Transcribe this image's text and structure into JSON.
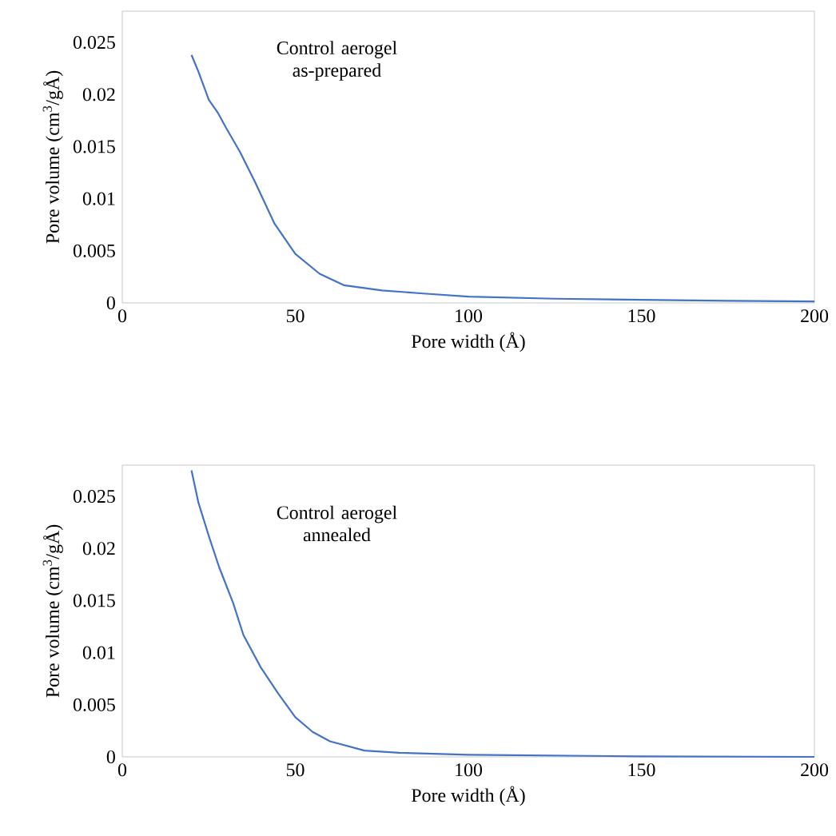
{
  "chart_data": [
    {
      "type": "line",
      "xlabel": "Pore width (Å)",
      "ylabel": "Pore volume (cm$^{3}$/gÅ)",
      "annotations": [
        "Control aerogel as-prepared"
      ],
      "xlim": [
        0,
        200
      ],
      "ylim": [
        0,
        0.028
      ],
      "xticks": [
        0,
        50,
        100,
        150,
        200
      ],
      "yticks": [
        0,
        0.005,
        0.01,
        0.015,
        0.02,
        0.025
      ],
      "series": [
        {
          "color": "#4472c4",
          "x": [
            20,
            22,
            25,
            27.7,
            30,
            34,
            38.5,
            44,
            50,
            57,
            64,
            75,
            87,
            100,
            125,
            150,
            175,
            200
          ],
          "values": [
            0.0238,
            0.0222,
            0.0195,
            0.0182,
            0.0168,
            0.0145,
            0.0115,
            0.0076,
            0.0047,
            0.0028,
            0.0017,
            0.0012,
            0.0009,
            0.0006,
            0.0004,
            0.0003,
            0.0002,
            0.00015
          ]
        }
      ]
    },
    {
      "type": "line",
      "xlabel": "Pore width (Å)",
      "ylabel": "Pore volume (cm$^{3}$/gÅ)",
      "annotations": [
        "Control aerogel annealed"
      ],
      "xlim": [
        0,
        200
      ],
      "ylim": [
        0,
        0.028
      ],
      "xticks": [
        0,
        50,
        100,
        150,
        200
      ],
      "yticks": [
        0,
        0.005,
        0.01,
        0.015,
        0.02,
        0.025
      ],
      "series": [
        {
          "color": "#4472c4",
          "x": [
            20,
            22,
            25,
            28,
            32,
            35,
            40,
            45,
            50,
            55,
            60,
            70,
            80,
            100,
            150,
            200
          ],
          "values": [
            0.0275,
            0.0244,
            0.0212,
            0.0182,
            0.0148,
            0.0117,
            0.0086,
            0.0061,
            0.0038,
            0.0024,
            0.0015,
            0.0006,
            0.0004,
            0.0002,
            5e-05,
            0
          ]
        }
      ]
    }
  ]
}
